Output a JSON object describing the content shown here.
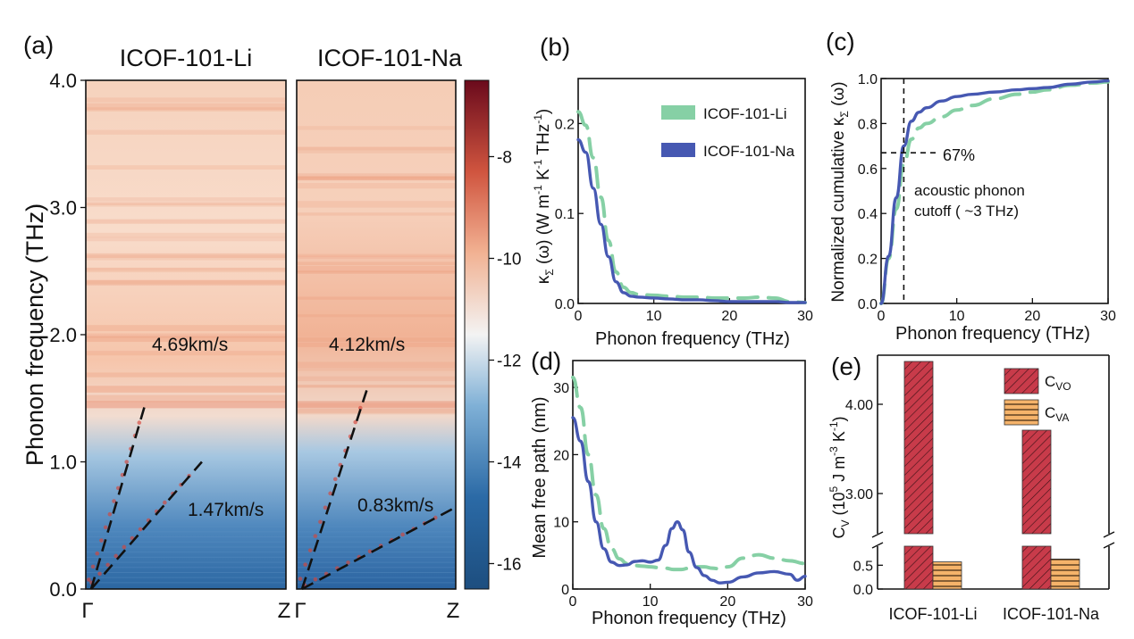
{
  "chart_data": [
    {
      "panel": "(a)",
      "type": "heatmap",
      "subplots": [
        {
          "title": "ICOF-101-Li",
          "lines": [
            {
              "label": "4.69km/s",
              "start": [
                "Γ",
                0.0
              ],
              "end": [
                0.3,
                1.47
              ]
            },
            {
              "label": "1.47km/s",
              "start": [
                "Γ",
                0.0
              ],
              "end": [
                0.58,
                1.0
              ]
            }
          ]
        },
        {
          "title": "ICOF-101-Na",
          "lines": [
            {
              "label": "4.12km/s",
              "start": [
                "Γ",
                0.0
              ],
              "end": [
                0.45,
                1.6
              ]
            },
            {
              "label": "0.83km/s",
              "start": [
                "Γ",
                0.0
              ],
              "end": [
                0.98,
                0.63
              ]
            }
          ]
        }
      ],
      "ylabel": "Phonon frequency (THz)",
      "ylim": [
        0,
        4.0
      ],
      "yticks": [
        "0.0",
        "1.0",
        "2.0",
        "3.0",
        "4.0"
      ],
      "xticks": [
        "Γ",
        "Z"
      ],
      "colorbar": {
        "ticks": [
          "-8",
          "-10",
          "-12",
          "-14",
          "-16"
        ],
        "range": [
          -16.5,
          -6.5
        ]
      }
    },
    {
      "panel": "(b)",
      "type": "line",
      "xlabel": "Phonon frequency (THz)",
      "ylabel": "κΣ (ω) (W m-1 K-1 THz-1)",
      "ylabel_parts": {
        "kappa": "κ",
        "sub": "Σ",
        "omega": " (ω) (W m",
        "m_exp": "-1",
        "k": " K",
        "k_exp": "-1",
        "thz": " THz",
        "thz_exp": "-1",
        "close": ")"
      },
      "xlim": [
        0,
        30
      ],
      "ylim": [
        0,
        0.25
      ],
      "xticks": [
        "0",
        "10",
        "20",
        "30"
      ],
      "yticks": [
        "0.0",
        "0.1",
        "0.2"
      ],
      "legend_position": "top-right",
      "series": [
        {
          "name": "ICOF-101-Li",
          "color": "#86d0a5",
          "style": "dashed",
          "x": [
            0,
            1,
            2,
            3,
            4,
            5,
            6,
            7,
            8,
            10,
            12,
            14,
            16,
            18,
            20,
            22,
            24,
            26,
            28,
            30
          ],
          "y": [
            0.213,
            0.198,
            0.162,
            0.118,
            0.07,
            0.035,
            0.018,
            0.012,
            0.01,
            0.009,
            0.008,
            0.007,
            0.007,
            0.006,
            0.006,
            0.006,
            0.007,
            0.006,
            0.002,
            0.001
          ]
        },
        {
          "name": "ICOF-101-Na",
          "color": "#4658b2",
          "style": "solid",
          "x": [
            0,
            1,
            2,
            3,
            4,
            5,
            6,
            7,
            8,
            10,
            12,
            14,
            16,
            18,
            20,
            22,
            24,
            26,
            28,
            30
          ],
          "y": [
            0.182,
            0.168,
            0.128,
            0.088,
            0.052,
            0.024,
            0.012,
            0.008,
            0.007,
            0.006,
            0.005,
            0.004,
            0.004,
            0.003,
            0.002,
            0.002,
            0.002,
            0.002,
            0.001,
            0.001
          ]
        }
      ]
    },
    {
      "panel": "(c)",
      "type": "line",
      "xlabel": "Phonon frequency (THz)",
      "ylabel": "Normalized cumulative κΣ (ω)",
      "ylabel_parts": {
        "main": "Normalized cumulative κ",
        "sub": "Σ",
        "end": " (ω)"
      },
      "xlim": [
        0,
        30
      ],
      "ylim": [
        0,
        1.0
      ],
      "xticks": [
        "0",
        "10",
        "20",
        "30"
      ],
      "yticks": [
        "0.0",
        "0.2",
        "0.4",
        "0.6",
        "0.8",
        "1.0"
      ],
      "annotations": {
        "percent": "67%",
        "cutoff_line1": "acoustic phonon",
        "cutoff_line2": "cutoff ( ~3 THz)",
        "vline_x": 3,
        "hline_y": 0.67
      },
      "series": [
        {
          "name": "ICOF-101-Li",
          "color": "#86d0a5",
          "style": "dashed",
          "x": [
            0,
            1,
            2,
            3,
            4,
            5,
            6,
            8,
            10,
            12,
            15,
            18,
            20,
            22,
            25,
            28,
            30
          ],
          "y": [
            0,
            0.2,
            0.42,
            0.62,
            0.73,
            0.78,
            0.8,
            0.83,
            0.86,
            0.88,
            0.91,
            0.93,
            0.94,
            0.95,
            0.97,
            0.98,
            0.985
          ]
        },
        {
          "name": "ICOF-101-Na",
          "color": "#4658b2",
          "style": "solid",
          "x": [
            0,
            1,
            2,
            3,
            4,
            5,
            6,
            8,
            10,
            12,
            15,
            18,
            20,
            22,
            25,
            28,
            30
          ],
          "y": [
            0,
            0.21,
            0.47,
            0.7,
            0.81,
            0.85,
            0.87,
            0.9,
            0.92,
            0.93,
            0.94,
            0.95,
            0.955,
            0.96,
            0.975,
            0.985,
            0.99
          ]
        }
      ]
    },
    {
      "panel": "(d)",
      "type": "line",
      "xlabel": "Phonon frequency (THz)",
      "ylabel": "Mean free path (nm)",
      "xlim": [
        0,
        30
      ],
      "ylim": [
        0,
        34
      ],
      "xticks": [
        "0",
        "10",
        "20",
        "30"
      ],
      "yticks": [
        "0",
        "10",
        "20",
        "30"
      ],
      "series": [
        {
          "name": "ICOF-101-Li",
          "color": "#86d0a5",
          "style": "dashed",
          "x": [
            0,
            1,
            2,
            3,
            4,
            5,
            6,
            7,
            8,
            9,
            10,
            11,
            12,
            13,
            14,
            15,
            16,
            17,
            18,
            19,
            20,
            22,
            24,
            26,
            28,
            30
          ],
          "y": [
            31.5,
            27,
            20,
            14,
            9,
            6,
            4.5,
            3.8,
            3.5,
            3.4,
            3.3,
            3.2,
            3.1,
            2.9,
            2.9,
            3.1,
            3.3,
            3.3,
            3.1,
            3.0,
            3.3,
            4.6,
            5.1,
            4.6,
            4.2,
            3.8
          ]
        },
        {
          "name": "ICOF-101-Na",
          "color": "#4658b2",
          "style": "solid",
          "x": [
            0,
            1,
            2,
            3,
            4,
            5,
            6,
            7,
            8,
            9,
            10,
            11,
            12,
            12.8,
            13.5,
            14.2,
            15,
            16,
            17,
            18,
            19,
            20,
            22,
            24,
            26,
            28,
            29,
            30
          ],
          "y": [
            25.5,
            22,
            16,
            10,
            6,
            4,
            3.5,
            3.6,
            4.1,
            4.2,
            4.0,
            4.3,
            6.5,
            9.0,
            10.0,
            8.8,
            5.5,
            3.2,
            2.0,
            1.3,
            0.9,
            1.0,
            1.8,
            2.4,
            2.6,
            2.2,
            1.3,
            1.9
          ]
        }
      ]
    },
    {
      "panel": "(e)",
      "type": "bar",
      "ylabel": "CV (105 J m-3 K-1)",
      "ylabel_parts": {
        "c": "C",
        "c_sub": "V",
        "open": " (10",
        "exp5": "5",
        "mid": " J m",
        "m_exp": "-3",
        "k": " K",
        "k_exp": "-1",
        "close": ")"
      },
      "categories": [
        "ICOF-101-Li",
        "ICOF-101-Na"
      ],
      "yticks_upper": [
        "3.00",
        "4.00"
      ],
      "yticks_lower": [
        "0.0",
        "0.5"
      ],
      "axis_break": true,
      "legend": [
        {
          "main": "C",
          "sub": "VO",
          "color": "#c83b4a",
          "hatch": "diagonal"
        },
        {
          "main": "C",
          "sub": "VA",
          "color": "#f5b36a",
          "hatch": "horizontal"
        }
      ],
      "series": [
        {
          "name": "CVO",
          "color": "#c83b4a",
          "values": [
            4.48,
            3.71
          ]
        },
        {
          "name": "CVA",
          "color": "#f5b36a",
          "values": [
            0.57,
            0.63
          ]
        }
      ]
    }
  ],
  "panel_labels": [
    "(a)",
    "(b)",
    "(c)",
    "(d)",
    "(e)"
  ]
}
